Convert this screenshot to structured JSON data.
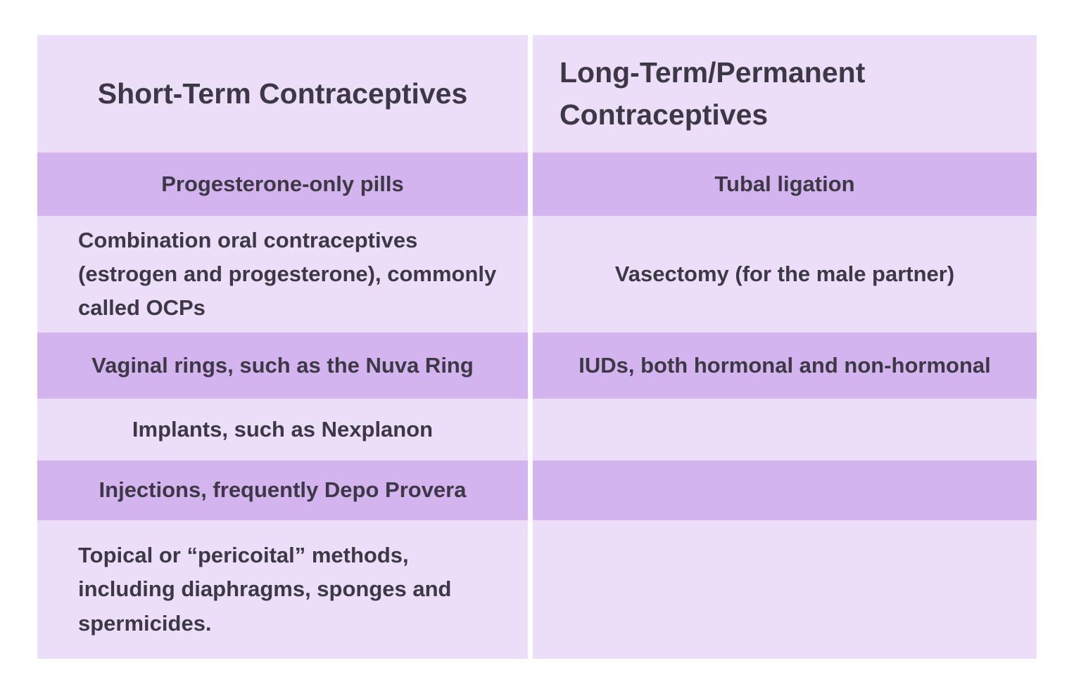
{
  "colors": {
    "background": "#ffffff",
    "row_light": "#ecdef8",
    "row_dark": "#d4b4ee",
    "text": "#3d3846",
    "divider": "#ffffff"
  },
  "table": {
    "left_column": {
      "header": "Short-Term Contraceptives",
      "rows": [
        "Progesterone-only pills",
        "Combination oral contraceptives (estrogen and progesterone), commonly called OCPs",
        "Vaginal rings, such as the Nuva Ring",
        "Implants, such as Nexplanon",
        "Injections, frequently Depo Provera",
        "Topical or “pericoital” methods, including diaphragms, sponges and spermicides."
      ]
    },
    "right_column": {
      "header": "Long-Term/Permanent Contraceptives",
      "rows": [
        "Tubal ligation",
        "Vasectomy (for the male partner)",
        "IUDs, both hormonal and non-hormonal",
        "",
        "",
        ""
      ]
    }
  }
}
